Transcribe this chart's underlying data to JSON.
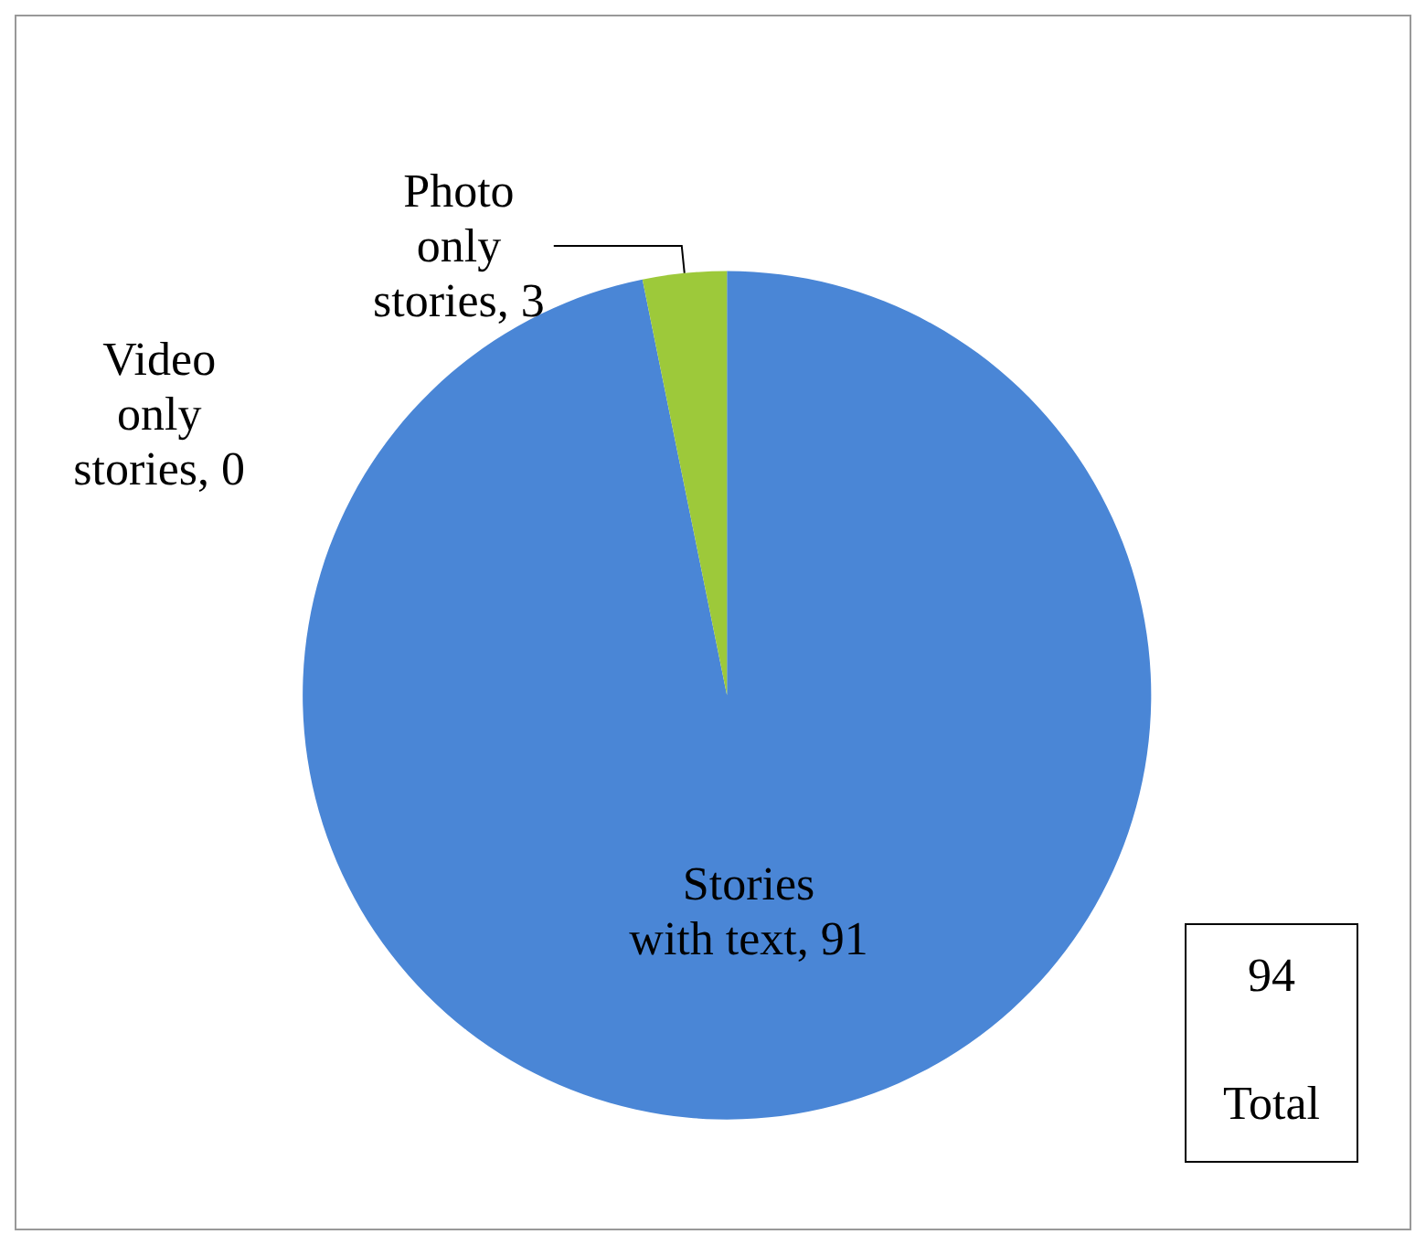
{
  "chart_data": {
    "type": "pie",
    "categories": [
      "Stories with text",
      "Video only stories",
      "Photo only stories"
    ],
    "values": [
      91,
      0,
      3
    ],
    "colors": [
      "#4a86d6",
      "#c0504d",
      "#9dc93a"
    ],
    "value_labels": [
      ", 91",
      ", 0",
      ", 3"
    ],
    "legend": false,
    "annotations": [
      "94",
      "Total"
    ]
  }
}
